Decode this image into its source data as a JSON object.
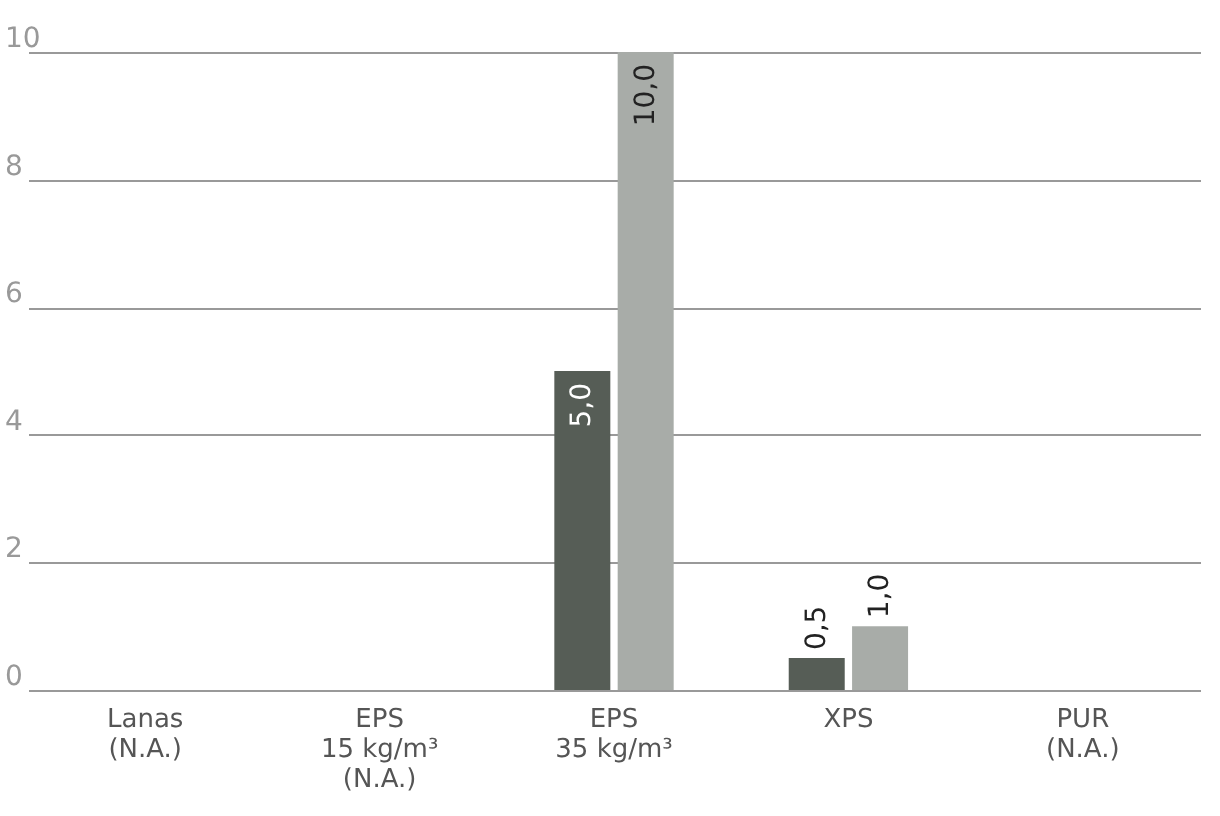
{
  "chart_data": {
    "type": "bar",
    "categories": [
      "Lanas\n(N.A.)",
      "EPS\n15 kg/m³\n(N.A.)",
      "EPS\n35 kg/m³",
      "XPS",
      "PUR\n(N.A.)"
    ],
    "series": [
      {
        "color": "#565d56",
        "values": [
          null,
          null,
          5.0,
          0.5,
          null
        ],
        "value_labels": [
          null,
          null,
          "5,0",
          "0,5",
          null
        ]
      },
      {
        "color": "#a8aca8",
        "values": [
          null,
          null,
          10.0,
          1.0,
          null
        ],
        "value_labels": [
          null,
          null,
          "10,0",
          "1,0",
          null
        ]
      }
    ],
    "ylim": [
      0,
      10
    ],
    "yticks": [
      0,
      2,
      4,
      6,
      8,
      10
    ],
    "grid": "y",
    "legend": false
  }
}
